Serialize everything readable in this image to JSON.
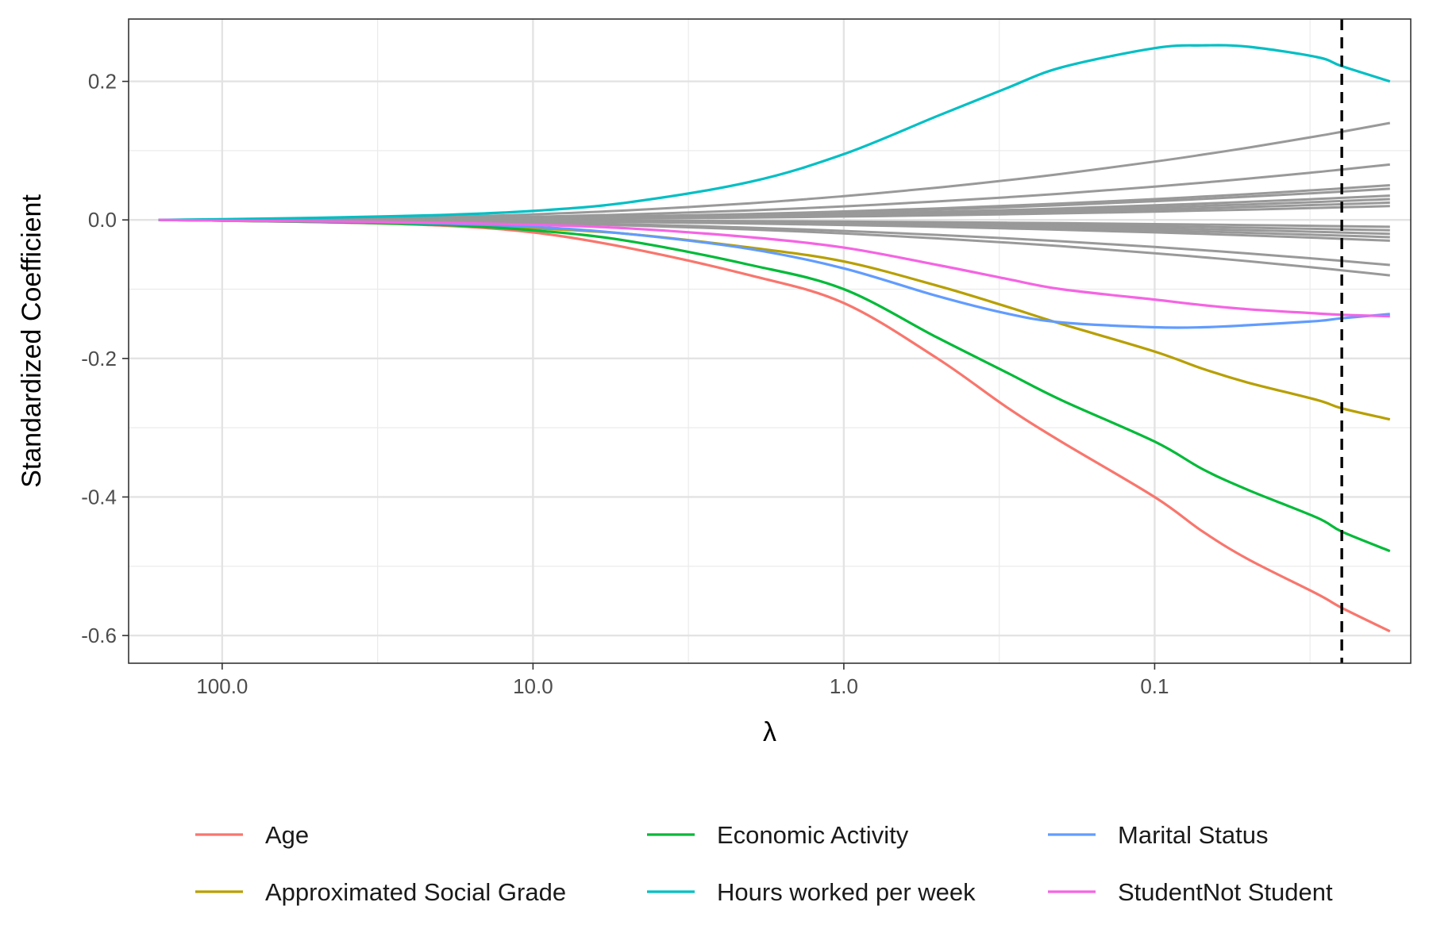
{
  "chart_data": {
    "type": "line",
    "title": "",
    "xlabel": "λ",
    "ylabel": "Standardized Coefficient",
    "x_scale": "log-reversed",
    "xlim": [
      200,
      0.015
    ],
    "ylim": [
      -0.64,
      0.29
    ],
    "x_ticks": [
      {
        "value": 100,
        "label": "100.0"
      },
      {
        "value": 10,
        "label": "10.0"
      },
      {
        "value": 1,
        "label": "1.0"
      },
      {
        "value": 0.1,
        "label": "0.1"
      }
    ],
    "y_ticks": [
      {
        "value": 0.2,
        "label": "0.2"
      },
      {
        "value": 0.0,
        "label": "0.0"
      },
      {
        "value": -0.2,
        "label": "-0.2"
      },
      {
        "value": -0.4,
        "label": "-0.4"
      },
      {
        "value": -0.6,
        "label": "-0.6"
      }
    ],
    "grid": true,
    "legend_position": "bottom",
    "vline": {
      "x": 0.025,
      "style": "dashed",
      "color": "#000000"
    },
    "x": [
      160,
      100,
      50,
      20,
      10,
      5,
      2,
      1,
      0.5,
      0.3,
      0.2,
      0.1,
      0.07,
      0.05,
      0.03,
      0.025,
      0.0175
    ],
    "series": [
      {
        "name": "Age",
        "color": "#F8766D",
        "values": [
          0,
          -0.001,
          -0.003,
          -0.008,
          -0.018,
          -0.04,
          -0.08,
          -0.12,
          -0.2,
          -0.27,
          -0.32,
          -0.4,
          -0.45,
          -0.49,
          -0.54,
          -0.56,
          -0.594
        ]
      },
      {
        "name": "Approximated Social Grade",
        "color": "#B79F00",
        "values": [
          0,
          -0.001,
          -0.002,
          -0.006,
          -0.012,
          -0.02,
          -0.04,
          -0.06,
          -0.095,
          -0.125,
          -0.15,
          -0.19,
          -0.215,
          -0.235,
          -0.26,
          -0.272,
          -0.288
        ]
      },
      {
        "name": "Economic Activity",
        "color": "#00BA38",
        "values": [
          0,
          -0.001,
          -0.003,
          -0.007,
          -0.015,
          -0.03,
          -0.065,
          -0.1,
          -0.17,
          -0.22,
          -0.26,
          -0.32,
          -0.36,
          -0.39,
          -0.43,
          -0.45,
          -0.478
        ]
      },
      {
        "name": "Hours worked per week",
        "color": "#00BFC4",
        "values": [
          0,
          0.001,
          0.003,
          0.007,
          0.013,
          0.025,
          0.055,
          0.095,
          0.15,
          0.19,
          0.22,
          0.248,
          0.252,
          0.25,
          0.235,
          0.222,
          0.2
        ]
      },
      {
        "name": "Marital Status",
        "color": "#619CFF",
        "values": [
          0,
          -0.001,
          -0.002,
          -0.005,
          -0.01,
          -0.02,
          -0.042,
          -0.07,
          -0.11,
          -0.135,
          -0.148,
          -0.155,
          -0.155,
          -0.152,
          -0.146,
          -0.142,
          -0.136
        ]
      },
      {
        "name": "StudentNot Student",
        "color": "#F564E3",
        "values": [
          0,
          -0.001,
          -0.002,
          -0.004,
          -0.007,
          -0.012,
          -0.025,
          -0.04,
          -0.065,
          -0.085,
          -0.1,
          -0.115,
          -0.123,
          -0.129,
          -0.135,
          -0.137,
          -0.139
        ]
      }
    ],
    "other_series_color": "#999999",
    "other_series_end_values": [
      0.14,
      0.08,
      0.05,
      0.045,
      0.035,
      0.03,
      0.025,
      0.02,
      -0.01,
      -0.015,
      -0.02,
      -0.025,
      -0.03,
      -0.065,
      -0.08
    ]
  }
}
